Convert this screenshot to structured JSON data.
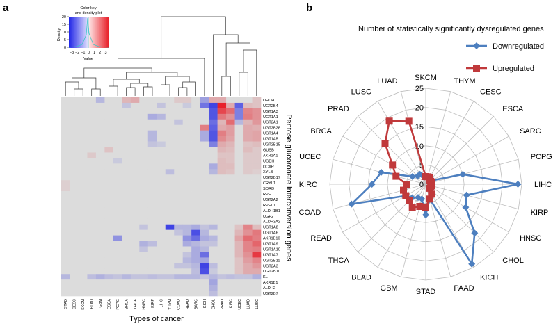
{
  "panel_a": {
    "letter": "a",
    "color_key": {
      "title_line1": "Color key",
      "title_line2": "and density plot",
      "ylabel": "Density",
      "yticks": [
        "0",
        "5",
        "10",
        "15",
        "20"
      ],
      "xticks": [
        "−3",
        "−2",
        "−1",
        "0",
        "1",
        "2",
        "3"
      ],
      "xlabel": "Value",
      "colors": {
        "low": "#1f24e6",
        "mid": "#dcdcdc",
        "high": "#e8202a"
      }
    }
  },
  "panel_b": {
    "letter": "b",
    "colors": {
      "down": "#4d7fbf",
      "up": "#c0393b",
      "grid": "#bdbdbd"
    }
  },
  "chart_data": [
    {
      "type": "heatmap",
      "xlabel": "Types of cancer",
      "ylabel": "Pentose glucoronate interconversion genes",
      "value_range": [
        -3,
        3
      ],
      "columns": [
        "STAD",
        "CESC",
        "SKCM",
        "BLAD",
        "GBM",
        "ESCA",
        "PCPG",
        "BRCA",
        "THCA",
        "HNSC",
        "KIRP",
        "LIHC",
        "THYM",
        "COAD",
        "READ",
        "SARC",
        "KICH",
        "CHOL",
        "PRAD",
        "KIRC",
        "UCEC",
        "LUAD",
        "LUSC"
      ],
      "rows": [
        "DHDH",
        "UGT2B4",
        "UGT1A3",
        "UGT1A1",
        "UGT2A1",
        "UGT2B28",
        "UGT1A4",
        "UGT1A5",
        "UGT2B15",
        "GUSB",
        "AKR1A1",
        "UGDH",
        "DCXR",
        "XYLB",
        "UGT2B17",
        "CRYL1",
        "SORD",
        "RPE",
        "UGT2A2",
        "RPEL1",
        "ALDH1B1",
        "UGP2",
        "ALDH3A2",
        "UGT1A8",
        "UGT1A6",
        "AKR1B10",
        "UGT1A9",
        "UGT1A10",
        "UGT1A7",
        "UGT2B11",
        "UGT2A3",
        "UGT2B10",
        "KL",
        "AKR1B1",
        "ALDH2",
        "UGT2B7"
      ],
      "values": [
        [
          0,
          0,
          0,
          0,
          -0.6,
          0,
          0,
          0.6,
          0.8,
          0,
          0,
          0,
          0,
          0.3,
          0.3,
          0,
          -1,
          0.8,
          0.8,
          0,
          0,
          0,
          0.4
        ],
        [
          0,
          0,
          0,
          0,
          0,
          0,
          0,
          -0.4,
          0,
          0,
          0,
          -0.4,
          0,
          0,
          -0.3,
          0,
          -1.7,
          -2.5,
          3,
          0.8,
          -2,
          0.5,
          0.4
        ],
        [
          0,
          0,
          0,
          0,
          0,
          0,
          0,
          0,
          0,
          0,
          0,
          0,
          0,
          0,
          0,
          0,
          0,
          -2.2,
          2.4,
          1.8,
          -1.5,
          1.4,
          1.2
        ],
        [
          0,
          0,
          0,
          0,
          0,
          0,
          0,
          0,
          0,
          0,
          -0.8,
          -0.6,
          0,
          0,
          0,
          0,
          0,
          -2.2,
          1.6,
          1.2,
          -1.5,
          1.5,
          1.2
        ],
        [
          0,
          0,
          0,
          0,
          0,
          0,
          0,
          0,
          0,
          0,
          0,
          0,
          0,
          -0.4,
          0,
          0,
          0,
          -1.8,
          0.6,
          1.8,
          -0.6,
          0.6,
          1.1
        ],
        [
          0,
          0,
          0,
          0,
          0,
          0,
          0,
          0,
          0,
          0,
          0,
          0,
          0,
          0,
          0,
          0,
          1.5,
          -2,
          0.8,
          1,
          0,
          0.8,
          0.7
        ],
        [
          0,
          0,
          0,
          0,
          0,
          0,
          0,
          0,
          0,
          0,
          -0.6,
          0,
          0,
          0,
          0,
          0,
          -0.8,
          -2.2,
          1.5,
          1,
          0,
          0.8,
          0.9
        ],
        [
          0,
          0,
          0,
          0,
          0,
          0,
          0,
          0,
          0,
          0,
          -0.6,
          0,
          0,
          0,
          0,
          0,
          -0.8,
          -2.2,
          1.3,
          0.9,
          0,
          0.8,
          0.9
        ],
        [
          0,
          0,
          0,
          0,
          0,
          0,
          0,
          0,
          0,
          0,
          -0.4,
          -0.3,
          0,
          0,
          0,
          0,
          0,
          -1.5,
          0.8,
          0.6,
          0,
          0.4,
          0.5
        ],
        [
          0,
          0,
          0,
          0,
          0,
          0.4,
          0,
          0,
          0,
          0,
          0,
          0,
          0,
          0,
          0,
          0,
          0,
          0,
          0.6,
          0.5,
          0,
          0.5,
          0.3
        ],
        [
          0,
          0,
          0,
          0.3,
          0,
          0,
          0,
          0,
          0,
          0,
          0,
          0,
          0,
          0,
          0,
          0,
          0,
          0,
          0.4,
          0.4,
          0,
          0.3,
          0.3
        ],
        [
          0,
          0,
          0,
          0,
          0,
          0,
          -0.3,
          0,
          0,
          0,
          0,
          0,
          0,
          0,
          0,
          0,
          0,
          0,
          0.5,
          0.4,
          0,
          0.3,
          0.3
        ],
        [
          0,
          0,
          0,
          0,
          0,
          0,
          0,
          0,
          0,
          0,
          0,
          0,
          0,
          0,
          0,
          0,
          0,
          -0.8,
          0.5,
          0.5,
          0,
          0.3,
          0.3
        ],
        [
          0,
          0,
          0,
          0,
          0,
          0,
          0,
          0,
          0,
          0,
          0,
          0,
          -0.5,
          0,
          0,
          0,
          0,
          -0.6,
          0.5,
          0.4,
          0,
          0.3,
          0.2
        ],
        [
          0,
          0,
          0,
          0,
          0,
          0,
          0,
          0,
          0,
          0,
          0,
          0,
          0,
          0,
          0,
          0,
          0,
          0,
          0,
          0,
          0,
          0,
          0
        ],
        [
          0.2,
          0,
          0,
          0,
          0,
          0,
          0,
          0,
          0,
          0,
          0,
          0,
          0,
          0,
          0,
          0,
          0,
          0,
          0,
          0,
          0,
          0,
          0
        ],
        [
          0.2,
          0,
          0,
          0,
          0,
          0,
          0,
          0,
          0,
          0,
          0,
          0,
          0,
          0,
          0,
          0,
          0,
          0,
          0,
          0,
          0,
          0,
          0
        ],
        [
          0,
          0,
          0,
          0,
          0,
          0,
          0,
          0,
          0,
          0,
          0,
          0,
          0,
          0,
          0,
          0,
          0,
          0,
          0,
          0,
          0,
          0,
          0
        ],
        [
          0,
          0,
          0,
          0,
          0,
          0,
          0,
          0,
          0,
          0,
          0,
          0,
          0,
          0,
          0,
          0,
          0,
          0,
          0,
          0,
          0,
          0,
          0
        ],
        [
          0,
          0,
          0,
          0,
          0,
          0,
          0,
          0,
          0,
          0,
          0,
          0,
          0,
          0,
          0,
          0,
          0,
          0,
          0,
          0,
          0,
          0,
          0
        ],
        [
          0,
          0,
          0,
          0,
          0,
          0,
          0,
          0,
          0,
          0,
          0,
          0,
          0,
          0,
          0,
          0,
          0,
          0,
          0,
          0,
          0,
          0,
          0
        ],
        [
          0,
          0,
          0,
          0,
          0,
          0,
          0,
          0,
          0,
          0,
          0,
          0,
          0,
          0,
          0,
          0,
          0,
          0,
          0,
          0,
          0,
          0,
          0
        ],
        [
          0,
          0,
          0,
          0,
          0,
          0,
          0,
          0,
          0,
          0,
          0,
          0,
          0,
          0,
          0,
          0,
          0,
          0,
          0,
          0,
          0,
          0,
          0
        ],
        [
          0,
          0,
          0,
          0,
          0,
          0,
          0,
          0,
          0,
          -0.4,
          0,
          0,
          -2.5,
          -0.6,
          -0.6,
          -0.8,
          -0.4,
          -0.6,
          0,
          0,
          0.4,
          1.4,
          0.5
        ],
        [
          0,
          0,
          0,
          0,
          0,
          0,
          0,
          0,
          0,
          0,
          0,
          0,
          0,
          -0.4,
          -0.6,
          -2.3,
          -0.6,
          0,
          0,
          0,
          0.6,
          1.2,
          1.6
        ],
        [
          0,
          0,
          0,
          0,
          0,
          0,
          -1.2,
          0,
          0,
          0,
          0,
          0,
          0,
          0,
          -1.2,
          -1.8,
          -0.8,
          -0.6,
          0,
          0,
          0.9,
          1.8,
          1.5
        ],
        [
          0,
          0,
          0,
          0,
          0,
          0,
          0,
          0,
          0,
          -0.7,
          -0.5,
          0,
          0,
          0,
          -0.8,
          -0.6,
          -0.4,
          -0.4,
          0,
          0,
          0.6,
          1.4,
          1.9
        ],
        [
          0,
          0,
          0,
          0,
          0,
          0,
          0,
          0,
          0,
          -0.4,
          0,
          0,
          0,
          0,
          0,
          -0.8,
          -0.6,
          0,
          0,
          0,
          0.6,
          1.4,
          1.5
        ],
        [
          0,
          0,
          0,
          0,
          0,
          0,
          0,
          0,
          0,
          0,
          0,
          0,
          0,
          0,
          -0.4,
          -0.8,
          -1.8,
          0,
          0,
          0,
          0.6,
          1.2,
          2.6
        ],
        [
          0,
          0,
          0,
          0,
          0,
          0,
          0,
          0,
          0,
          0,
          0,
          0,
          0,
          0,
          -0.6,
          -0.8,
          -0.9,
          0,
          0,
          0,
          0.4,
          1,
          1.4
        ],
        [
          0,
          0,
          0,
          0,
          0,
          0,
          0,
          0,
          0,
          0,
          0,
          0,
          0,
          -0.4,
          -0.4,
          -0.6,
          -2.5,
          -0.5,
          0,
          0,
          0.4,
          0.8,
          1.1
        ],
        [
          0,
          0,
          0,
          0,
          0,
          0,
          0,
          0,
          0,
          0,
          0,
          0,
          0,
          0,
          0,
          -0.5,
          -2.3,
          -0.3,
          0,
          0,
          0.4,
          0.8,
          0.8
        ],
        [
          -0.6,
          0,
          0,
          -0.5,
          -0.7,
          -0.5,
          -0.4,
          -0.6,
          -0.4,
          -0.4,
          -0.5,
          -0.4,
          -0.4,
          -0.6,
          -0.6,
          -0.6,
          -0.4,
          -0.6,
          -0.4,
          -0.5,
          -0.4,
          -0.4,
          -0.7
        ],
        [
          0,
          0,
          0,
          0,
          0,
          0,
          0,
          0,
          0,
          0,
          0,
          0,
          0,
          0,
          0,
          0,
          0,
          -0.9,
          0,
          0,
          0,
          0,
          0
        ],
        [
          0,
          0,
          0,
          0,
          0,
          0,
          0,
          0,
          0,
          0,
          0,
          0,
          0,
          0,
          0,
          0,
          0,
          -0.7,
          0,
          0,
          0,
          0,
          0
        ],
        [
          0,
          0,
          0,
          0,
          0,
          0,
          0,
          0,
          0,
          0,
          0,
          0,
          0,
          0,
          0,
          0,
          0,
          -0.5,
          0,
          0,
          0,
          0,
          0
        ]
      ]
    },
    {
      "type": "radar",
      "title": "Number of statistically significantly dysregulated genes",
      "categories": [
        "SKCM",
        "THYM",
        "CESC",
        "ESCA",
        "SARC",
        "PCPG",
        "LIHC",
        "KIRP",
        "HNSC",
        "CHOL",
        "KICH",
        "PAAD",
        "STAD",
        "GBM",
        "BLAD",
        "THCA",
        "READ",
        "COAD",
        "KIRC",
        "UCEC",
        "BRCA",
        "PRAD",
        "LUSC",
        "LUAD"
      ],
      "radial_ticks": [
        "0",
        "5",
        "10",
        "15",
        "20",
        "25"
      ],
      "rmax": 25,
      "series": [
        {
          "name": "Downregulated",
          "values": [
            2,
            2,
            2,
            2,
            2,
            10,
            24,
            11,
            12,
            18,
            24,
            4,
            8,
            4,
            4,
            5,
            6,
            20,
            14,
            12,
            4,
            3,
            3,
            2
          ]
        },
        {
          "name": "Upregulated",
          "values": [
            2,
            2,
            2,
            1.5,
            1.5,
            1.5,
            1.5,
            1.5,
            1.5,
            1.5,
            3,
            4,
            6,
            6,
            7,
            6,
            6,
            6,
            5,
            8,
            10,
            15,
            19,
            17
          ]
        }
      ]
    }
  ]
}
